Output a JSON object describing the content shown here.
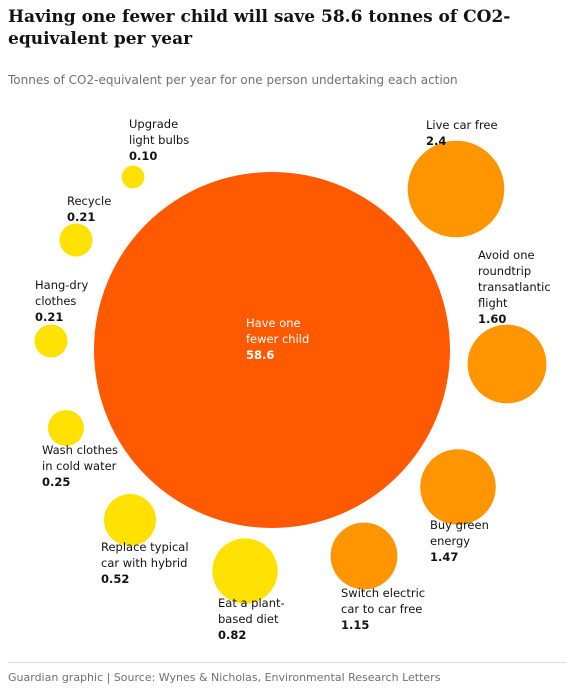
{
  "title": "Having one fewer child will save 58.6 tonnes of CO2-equivalent per year",
  "subtitle": "Tonnes of CO2-equivalent per year for one person undertaking each action",
  "source": "Guardian graphic | Source: Wynes & Nicholas, Environmental Research Letters",
  "colors": {
    "large": "#ff5a00",
    "medium": "#ff9500",
    "small": "#ffe100"
  },
  "chart_data": {
    "type": "bubble",
    "title": "Having one fewer child will save 58.6 tonnes of CO2-equivalent per year",
    "subtitle": "Tonnes of CO2-equivalent per year for one person undertaking each action",
    "unit": "tonnes of CO2-equivalent per year",
    "items": [
      {
        "label": [
          "Have one",
          "fewer child"
        ],
        "value": 58.6,
        "value_text": "58.6",
        "color": "#ff5a00"
      },
      {
        "label": [
          "Live car free"
        ],
        "value": 2.4,
        "value_text": "2.4",
        "color": "#ff9500"
      },
      {
        "label": [
          "Avoid one",
          "roundtrip",
          "transatlantic",
          "flight"
        ],
        "value": 1.6,
        "value_text": "1.60",
        "color": "#ff9500"
      },
      {
        "label": [
          "Buy green",
          "energy"
        ],
        "value": 1.47,
        "value_text": "1.47",
        "color": "#ff9500"
      },
      {
        "label": [
          "Switch electric",
          "car to car free"
        ],
        "value": 1.15,
        "value_text": "1.15",
        "color": "#ff9500"
      },
      {
        "label": [
          "Eat a plant-",
          "based diet"
        ],
        "value": 0.82,
        "value_text": "0.82",
        "color": "#ffe100"
      },
      {
        "label": [
          "Replace typical",
          "car with hybrid"
        ],
        "value": 0.52,
        "value_text": "0.52",
        "color": "#ffe100"
      },
      {
        "label": [
          "Wash clothes",
          "in cold water"
        ],
        "value": 0.25,
        "value_text": "0.25",
        "color": "#ffe100"
      },
      {
        "label": [
          "Hang-dry",
          "clothes"
        ],
        "value": 0.21,
        "value_text": "0.21",
        "color": "#ffe100"
      },
      {
        "label": [
          "Recycle"
        ],
        "value": 0.21,
        "value_text": "0.21",
        "color": "#ffe100"
      },
      {
        "label": [
          "Upgrade",
          "light bulbs"
        ],
        "value": 0.1,
        "value_text": "0.10",
        "color": "#ffe100"
      }
    ]
  }
}
